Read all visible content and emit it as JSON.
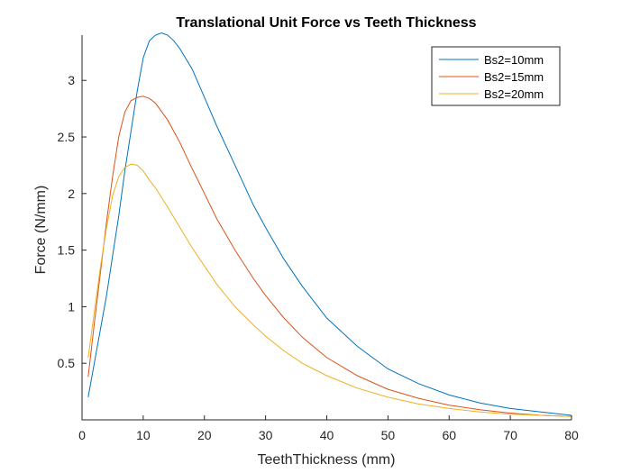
{
  "chart_data": {
    "type": "line",
    "title": "Translational Unit Force vs Teeth Thickness",
    "xlabel": "TeethThickness (mm)",
    "ylabel": "Force (N/mm)",
    "xlim": [
      0,
      80
    ],
    "ylim": [
      0,
      3.4
    ],
    "xticks": [
      0,
      10,
      20,
      30,
      40,
      50,
      60,
      70,
      80
    ],
    "yticks": [
      0.5,
      1,
      1.5,
      2,
      2.5,
      3
    ],
    "ytick_labels": [
      "0.5",
      "1",
      "1.5",
      "2",
      "2.5",
      "3"
    ],
    "grid": false,
    "legend_position": "top-right",
    "series": [
      {
        "name": "Bs2=10mm",
        "color": "#0072BD",
        "x": [
          1,
          2,
          3,
          4,
          5,
          6,
          7,
          8,
          9,
          10,
          11,
          12,
          13,
          14,
          15,
          16,
          18,
          20,
          22,
          25,
          28,
          30,
          33,
          36,
          40,
          45,
          50,
          55,
          60,
          65,
          70,
          75,
          80
        ],
        "y": [
          0.2,
          0.5,
          0.8,
          1.1,
          1.45,
          1.8,
          2.2,
          2.55,
          2.9,
          3.2,
          3.35,
          3.4,
          3.42,
          3.4,
          3.35,
          3.28,
          3.1,
          2.85,
          2.6,
          2.25,
          1.9,
          1.7,
          1.42,
          1.18,
          0.9,
          0.65,
          0.45,
          0.32,
          0.22,
          0.15,
          0.1,
          0.07,
          0.04
        ]
      },
      {
        "name": "Bs2=15mm",
        "color": "#D95319",
        "x": [
          1,
          2,
          3,
          4,
          5,
          6,
          7,
          8,
          9,
          10,
          11,
          12,
          14,
          16,
          18,
          20,
          22,
          25,
          28,
          30,
          33,
          36,
          40,
          45,
          50,
          55,
          60,
          65,
          70,
          75,
          80
        ],
        "y": [
          0.38,
          0.85,
          1.3,
          1.75,
          2.15,
          2.5,
          2.72,
          2.82,
          2.85,
          2.86,
          2.84,
          2.8,
          2.65,
          2.45,
          2.22,
          2.0,
          1.78,
          1.5,
          1.25,
          1.1,
          0.9,
          0.73,
          0.55,
          0.39,
          0.27,
          0.19,
          0.13,
          0.09,
          0.06,
          0.04,
          0.03
        ]
      },
      {
        "name": "Bs2=20mm",
        "color": "#EDB120",
        "x": [
          1,
          2,
          3,
          4,
          5,
          6,
          7,
          8,
          9,
          10,
          11,
          12,
          14,
          16,
          18,
          20,
          22,
          25,
          28,
          30,
          33,
          36,
          40,
          45,
          50,
          55,
          60,
          65,
          70,
          75,
          80
        ],
        "y": [
          0.55,
          0.95,
          1.35,
          1.7,
          1.98,
          2.15,
          2.23,
          2.26,
          2.25,
          2.2,
          2.12,
          2.05,
          1.88,
          1.7,
          1.52,
          1.36,
          1.2,
          1.0,
          0.84,
          0.74,
          0.61,
          0.5,
          0.39,
          0.28,
          0.2,
          0.14,
          0.1,
          0.07,
          0.05,
          0.04,
          0.03
        ]
      }
    ]
  }
}
